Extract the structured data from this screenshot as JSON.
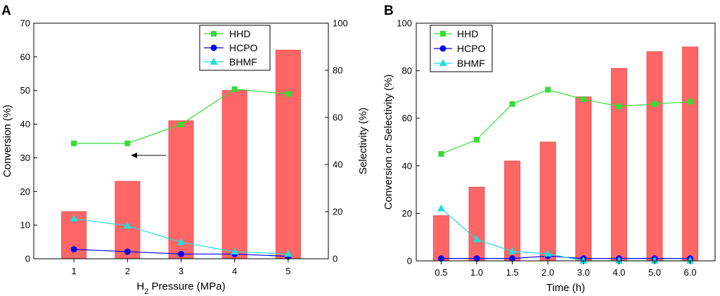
{
  "chart_data": [
    {
      "panel_label": "A",
      "type": "bar+line",
      "xlabel_prefix": "H",
      "xlabel_sub": "2",
      "xlabel_suffix": " Pressure (MPa)",
      "ylabel_left": "Conversion (%)",
      "ylabel_right": "Selectivity (%)",
      "categories": [
        "1",
        "2",
        "3",
        "4",
        "5"
      ],
      "ylim_left": [
        0,
        70
      ],
      "yticks_left": [
        "0",
        "10",
        "20",
        "30",
        "40",
        "50",
        "60",
        "70"
      ],
      "ylim_right": [
        0,
        100
      ],
      "yticks_right": [
        "0",
        "20",
        "40",
        "60",
        "80",
        "100"
      ],
      "bars": {
        "name": "Conversion",
        "axis": "left",
        "values": [
          14,
          23,
          41,
          50,
          62
        ]
      },
      "series": [
        {
          "name": "HHD",
          "axis": "right",
          "color": "#33dd33",
          "marker": "square",
          "values": [
            49,
            49,
            57,
            72,
            70
          ]
        },
        {
          "name": "HCPO",
          "axis": "right",
          "color": "#0000ee",
          "marker": "circle",
          "values": [
            4,
            3,
            2,
            2,
            1
          ]
        },
        {
          "name": "BHMF",
          "axis": "right",
          "color": "#22dddd",
          "marker": "triangle",
          "values": [
            17,
            14,
            7,
            3,
            2
          ]
        }
      ],
      "legend": [
        "HHD",
        "HCPO",
        "BHMF"
      ],
      "legend_position": "top-center",
      "annotation": "arrow pointing left to conversion axis"
    },
    {
      "panel_label": "B",
      "type": "bar+line",
      "xlabel": "Time (h)",
      "ylabel": "Conversion or Selectivity (%)",
      "categories": [
        "0.5",
        "1.0",
        "1.5",
        "2.0",
        "3.0",
        "4.0",
        "5.0",
        "6.0"
      ],
      "ylim": [
        0,
        100
      ],
      "yticks": [
        "0",
        "20",
        "40",
        "60",
        "80",
        "100"
      ],
      "bars": {
        "name": "Conversion",
        "values": [
          19,
          31,
          42,
          50,
          69,
          81,
          88,
          90
        ]
      },
      "series": [
        {
          "name": "HHD",
          "color": "#33dd33",
          "marker": "square",
          "values": [
            45,
            51,
            66,
            72,
            68,
            65,
            66,
            67
          ]
        },
        {
          "name": "HCPO",
          "color": "#0000ee",
          "marker": "circle",
          "values": [
            1,
            1,
            1,
            2,
            1,
            1,
            1,
            1
          ]
        },
        {
          "name": "BHMF",
          "color": "#22dddd",
          "marker": "triangle",
          "values": [
            22,
            9,
            4,
            3,
            0,
            0,
            0,
            0
          ]
        }
      ],
      "legend": [
        "HHD",
        "HCPO",
        "BHMF"
      ],
      "legend_position": "top-left"
    }
  ],
  "colors": {
    "bar_fill": "#ff6666",
    "bar_stroke": "#e85555",
    "axis": "#000000"
  }
}
